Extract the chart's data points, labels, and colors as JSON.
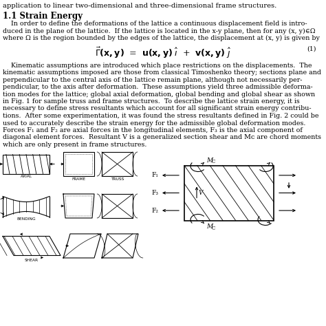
{
  "bg_color": "#ffffff",
  "text_color": "#000000",
  "title_line": "application to linear two-dimensional and three-dimensional frame structures.",
  "section_title": "1.1 Strain Energy",
  "p1_lines": [
    "    In order to define the deformations of the lattice a continuous displacement field is intro-",
    "duced in the plane of the lattice.  If the lattice is located in the x-y plane, then for any (x, y)∈Ω",
    "where Ω is the region bounded by the edges of the lattice, the displacement at (x, y) is given by"
  ],
  "p2_lines": [
    "    Kinematic assumptions are introduced which place restrictions on the displacements.  The",
    "kinematic assumptions imposed are those from classical Timoshenko theory; sections plane and",
    "perpendicular to the central axis of the lattice remain plane, although not necessarily per-",
    "pendicular, to the axis after deformation.  These assumptions yield three admissible deforma-",
    "tion modes for the lattice; global axial deformation, global bending and global shear as shown",
    "in Fig. 1 for sample truss and frame structures.  To describe the lattice strain energy, it is",
    "necessary to define stress resultants which account for all significant strain energy contribu-",
    "tions.  After some experimentation, it was found the stress resultants defined in Fig. 2 could be",
    "used to accurately describe the strain energy for the admissible global deformation modes.",
    "Forces F₁ and F₂ are axial forces in the longitudinal elements, F₃ is the axial component of",
    "diagonal element forces.  Resultant V is a generalized section shear and Mᴄ are chord moments",
    "which are only present in frame structures."
  ],
  "fs_title": 7.2,
  "fs_section": 8.5,
  "fs_body": 6.8,
  "fs_eq": 9.0,
  "fs_label": 4.2,
  "fs_force": 6.5
}
